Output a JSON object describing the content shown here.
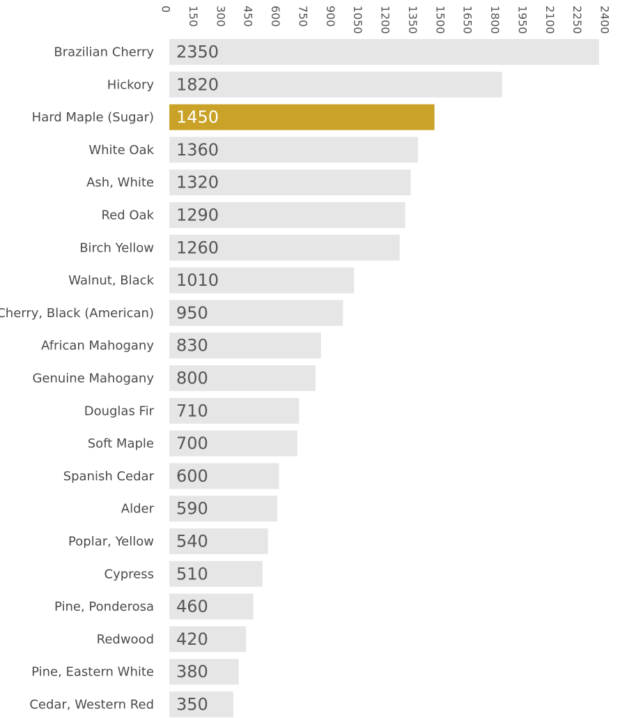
{
  "chart_data": {
    "type": "bar",
    "orientation": "horizontal",
    "title": "",
    "xlabel": "",
    "ylabel": "",
    "categories": [
      "Brazilian Cherry",
      "Hickory",
      "Hard Maple (Sugar)",
      "White Oak",
      "Ash, White",
      "Red Oak",
      "Birch Yellow",
      "Walnut, Black",
      "Cherry, Black (American)",
      "African Mahogany",
      "Genuine Mahogany",
      "Douglas Fir",
      "Soft Maple",
      "Spanish Cedar",
      "Alder",
      "Poplar, Yellow",
      "Cypress",
      "Pine, Ponderosa",
      "Redwood",
      "Pine, Eastern White",
      "Cedar, Western Red"
    ],
    "values": [
      2350,
      1820,
      1450,
      1360,
      1320,
      1290,
      1260,
      1010,
      950,
      830,
      800,
      710,
      700,
      600,
      590,
      540,
      510,
      460,
      420,
      380,
      350
    ],
    "value_labels": [
      "2350",
      "1820",
      "1450",
      "1360",
      "1320",
      "1290",
      "1260",
      "1010",
      "950",
      "830",
      "800",
      "710",
      "700",
      "600",
      "590",
      "540",
      "510",
      "460",
      "420",
      "380",
      "350"
    ],
    "highlight": "Hard Maple (Sugar)",
    "xlim": [
      0,
      2400
    ],
    "ticks": [
      0,
      150,
      300,
      450,
      600,
      750,
      900,
      1050,
      1200,
      1350,
      1500,
      1650,
      1800,
      1950,
      2100,
      2250,
      2400
    ],
    "tick_labels": [
      "0",
      "150",
      "300",
      "450",
      "600",
      "750",
      "900",
      "1050",
      "1200",
      "1350",
      "1500",
      "1650",
      "1800",
      "1950",
      "2100",
      "2250",
      "2400"
    ],
    "axis_position": "top",
    "grid": false,
    "colors": {
      "bar": "#e6e6e6",
      "highlight": "#c9a227"
    }
  }
}
